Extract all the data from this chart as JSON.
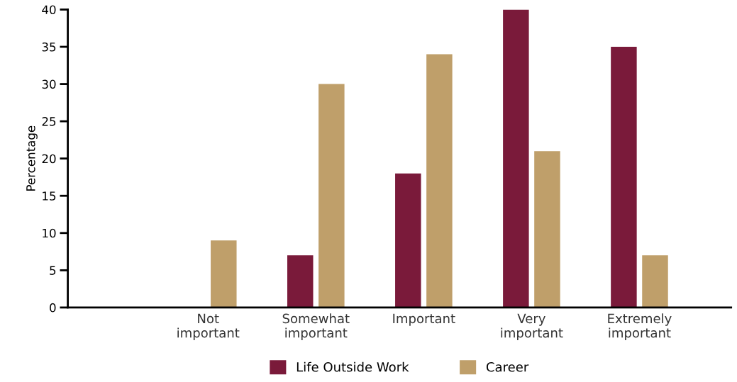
{
  "chart_data": {
    "type": "bar",
    "ylabel": "Percentage",
    "categories": [
      "Not\nimportant",
      "Somewhat\nimportant",
      "Important",
      "Very\nimportant",
      "Extremely\nimportant"
    ],
    "series": [
      {
        "name": "Life Outside Work",
        "color": "#7a1a3a",
        "values": [
          0,
          7,
          18,
          40,
          35
        ]
      },
      {
        "name": "Career",
        "color": "#bf9f6a",
        "values": [
          9,
          30,
          34,
          21,
          7
        ]
      }
    ],
    "ylim": [
      0,
      40
    ],
    "yticks": [
      0,
      5,
      10,
      15,
      20,
      25,
      30,
      35,
      40
    ],
    "grid": false,
    "legend": "bottom"
  }
}
